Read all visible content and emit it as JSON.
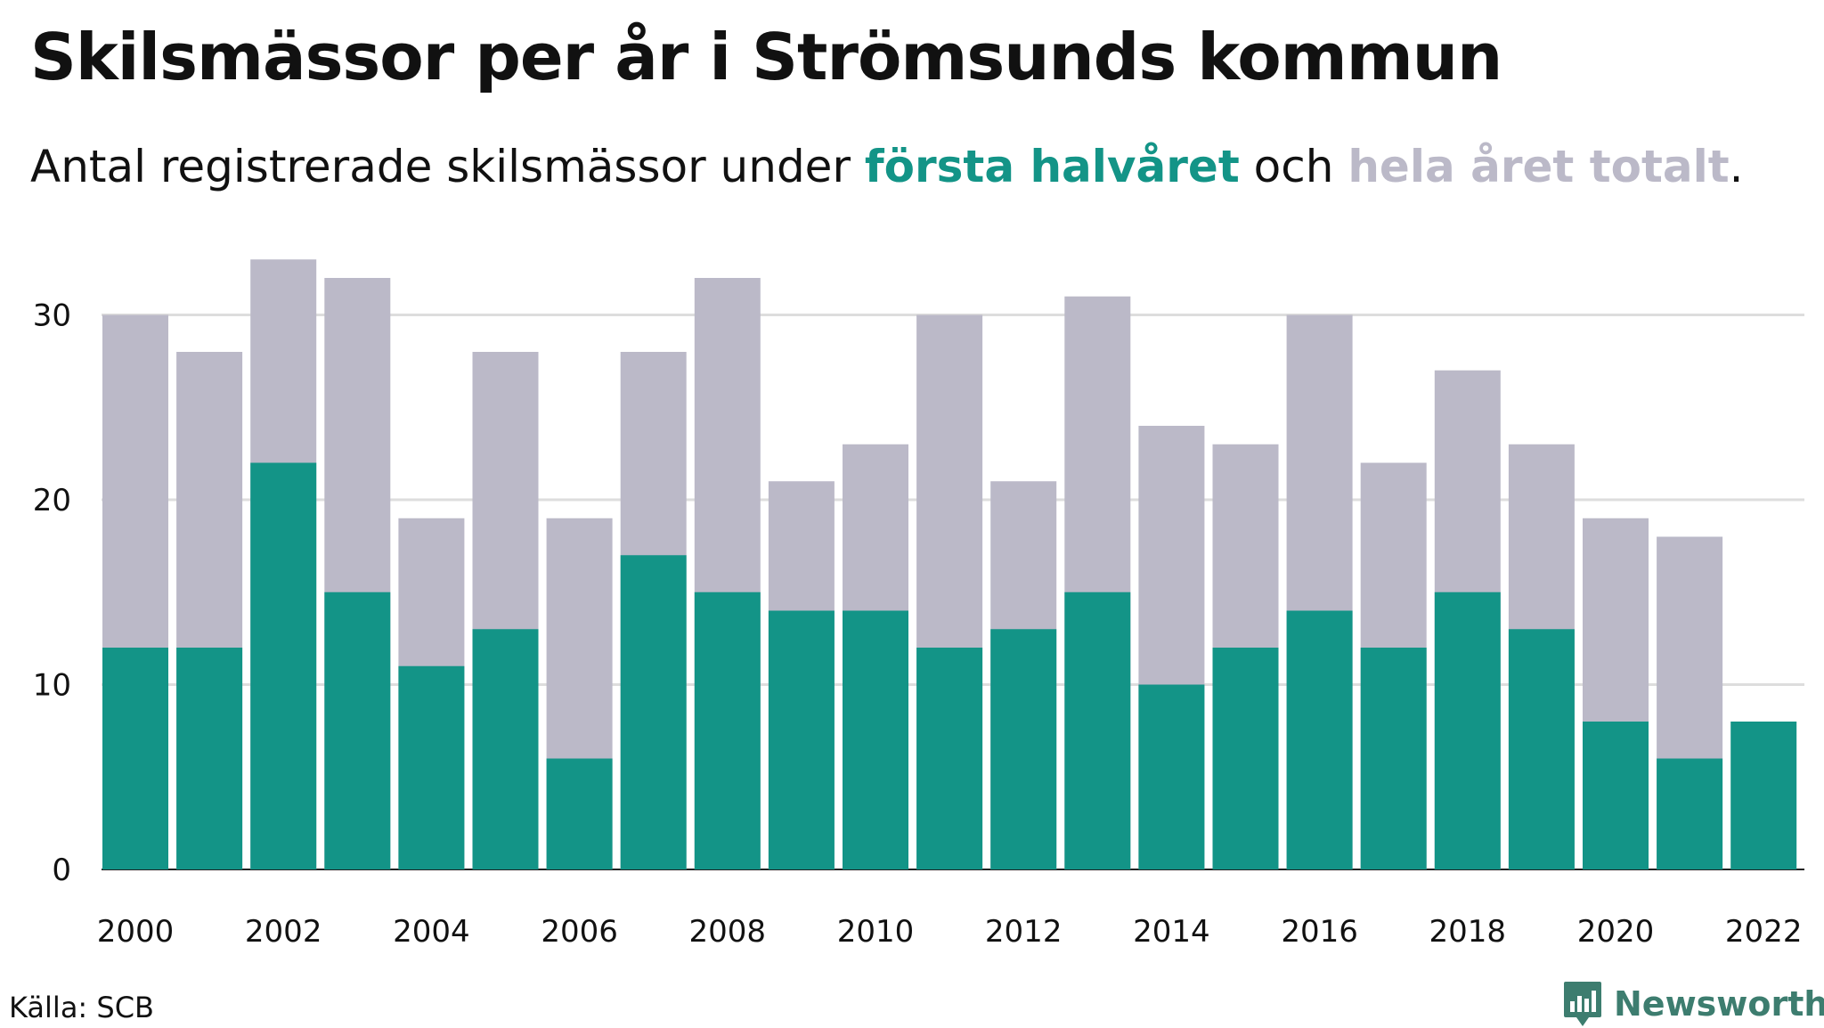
{
  "title": "Skilsmässor per år i Strömsunds kommun",
  "subtitle": {
    "prefix": "Antal registrerade skilsmässor under ",
    "first_half": "första halvåret",
    "middle": " och ",
    "total": "hela året totalt",
    "suffix": "."
  },
  "source": "Källa: SCB",
  "brand": {
    "name": "Newsworthy",
    "icon": "newsworthy-logo-icon",
    "color": "#3d7d6f"
  },
  "colors": {
    "first_half": "#139487",
    "total": "#bbb9c8",
    "grid": "#dddddd"
  },
  "chart_data": {
    "type": "bar",
    "stacking": "overlay",
    "categories": [
      "2000",
      "2001",
      "2002",
      "2003",
      "2004",
      "2005",
      "2006",
      "2007",
      "2008",
      "2009",
      "2010",
      "2011",
      "2012",
      "2013",
      "2014",
      "2015",
      "2016",
      "2017",
      "2018",
      "2019",
      "2020",
      "2021",
      "2022"
    ],
    "x_tick_labels": [
      "2000",
      "2002",
      "2004",
      "2006",
      "2008",
      "2010",
      "2012",
      "2014",
      "2016",
      "2018",
      "2020",
      "2022"
    ],
    "series": [
      {
        "name": "hela året totalt",
        "color": "#bbb9c8",
        "values": [
          30,
          28,
          33,
          32,
          19,
          28,
          19,
          28,
          32,
          21,
          23,
          30,
          21,
          31,
          24,
          23,
          30,
          22,
          27,
          23,
          19,
          18,
          null
        ]
      },
      {
        "name": "första halvåret",
        "color": "#139487",
        "values": [
          12,
          12,
          22,
          15,
          11,
          13,
          6,
          17,
          15,
          14,
          14,
          12,
          13,
          15,
          10,
          12,
          14,
          12,
          15,
          13,
          8,
          6,
          8
        ]
      }
    ],
    "y_ticks": [
      0,
      10,
      20,
      30
    ],
    "ylim": [
      0,
      33
    ],
    "grid": true,
    "legend": "in subtitle"
  }
}
